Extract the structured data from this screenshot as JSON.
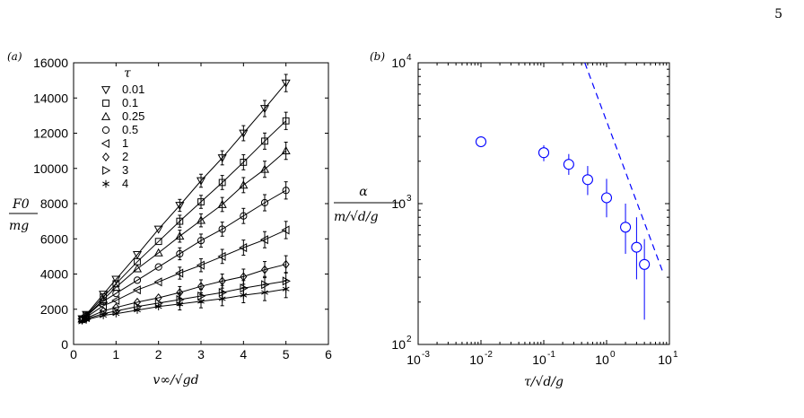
{
  "page_number": "5",
  "chart_data": [
    {
      "type": "line",
      "panel_label": "(a)",
      "xlabel": "v∞/√gd",
      "ylabel_num": "F0",
      "ylabel_den": "mg",
      "xlim": [
        0,
        6
      ],
      "ylim": [
        0,
        16000
      ],
      "x_ticks": [
        "0",
        "1",
        "2",
        "3",
        "4",
        "5",
        "6"
      ],
      "y_ticks": [
        "0",
        "2000",
        "4000",
        "6000",
        "8000",
        "10000",
        "12000",
        "14000",
        "16000"
      ],
      "legend_title": "τ",
      "legend_position": "top-left",
      "x": [
        0.2,
        0.3,
        0.7,
        1.0,
        1.5,
        2.0,
        2.5,
        3.0,
        3.5,
        4.0,
        4.5,
        5.0
      ],
      "series": [
        {
          "name": "0.01",
          "marker": "triangle-down",
          "values": [
            1450,
            1700,
            2850,
            3700,
            5100,
            6550,
            7900,
            9300,
            10600,
            12000,
            13400,
            14850
          ]
        },
        {
          "name": "0.1",
          "marker": "square",
          "values": [
            1450,
            1650,
            2700,
            3450,
            4700,
            5850,
            7000,
            8100,
            9200,
            10350,
            11550,
            12700
          ]
        },
        {
          "name": "0.25",
          "marker": "triangle-up",
          "values": [
            1450,
            1600,
            2550,
            3250,
            4300,
            5200,
            6150,
            7050,
            7950,
            9050,
            9950,
            11000
          ]
        },
        {
          "name": "0.5",
          "marker": "circle",
          "values": [
            1450,
            1600,
            2450,
            2900,
            3650,
            4400,
            5150,
            5900,
            6550,
            7300,
            8050,
            8750
          ]
        },
        {
          "name": "1",
          "marker": "triangle-left",
          "values": [
            1450,
            1550,
            2200,
            2500,
            3100,
            3550,
            4050,
            4500,
            5000,
            5500,
            5950,
            6500
          ]
        },
        {
          "name": "2",
          "marker": "diamond",
          "values": [
            1400,
            1500,
            1900,
            2100,
            2400,
            2650,
            2950,
            3300,
            3600,
            3850,
            4250,
            4550
          ]
        },
        {
          "name": "3",
          "marker": "triangle-right",
          "values": [
            1400,
            1450,
            1750,
            1900,
            2150,
            2350,
            2550,
            2750,
            2950,
            3200,
            3400,
            3600
          ]
        },
        {
          "name": "4",
          "marker": "asterisk",
          "values": [
            1350,
            1400,
            1650,
            1750,
            1950,
            2150,
            2300,
            2450,
            2600,
            2800,
            2950,
            3150
          ]
        }
      ]
    },
    {
      "type": "scatter",
      "panel_label": "(b)",
      "xlabel": "τ/√d/g",
      "ylabel_num": "α",
      "ylabel_den": "m/√d/g",
      "x_scale": "log",
      "y_scale": "log",
      "xlim": [
        0.001,
        10
      ],
      "ylim": [
        100,
        10000
      ],
      "x_ticks": [
        {
          "base": "10",
          "exp": "-3"
        },
        {
          "base": "10",
          "exp": "-2"
        },
        {
          "base": "10",
          "exp": "-1"
        },
        {
          "base": "10",
          "exp": "0"
        },
        {
          "base": "10",
          "exp": "1"
        }
      ],
      "y_ticks": [
        {
          "base": "10",
          "exp": "2"
        },
        {
          "base": "10",
          "exp": "3"
        },
        {
          "base": "10",
          "exp": "4"
        }
      ],
      "color": "#0000ff",
      "points": [
        {
          "x": 0.01,
          "y": 2750,
          "err_low": 2550,
          "err_high": 2950
        },
        {
          "x": 0.1,
          "y": 2300,
          "err_low": 2000,
          "err_high": 2600
        },
        {
          "x": 0.25,
          "y": 1900,
          "err_low": 1600,
          "err_high": 2250
        },
        {
          "x": 0.5,
          "y": 1480,
          "err_low": 1150,
          "err_high": 1850
        },
        {
          "x": 1.0,
          "y": 1100,
          "err_low": 800,
          "err_high": 1500
        },
        {
          "x": 2.0,
          "y": 680,
          "err_low": 440,
          "err_high": 1000
        },
        {
          "x": 3.0,
          "y": 490,
          "err_low": 290,
          "err_high": 800
        },
        {
          "x": 4.0,
          "y": 370,
          "err_low": 150,
          "err_high": 560
        }
      ],
      "dashed_line": {
        "x": [
          0.45,
          8.0
        ],
        "y": [
          10000,
          320
        ]
      }
    }
  ]
}
